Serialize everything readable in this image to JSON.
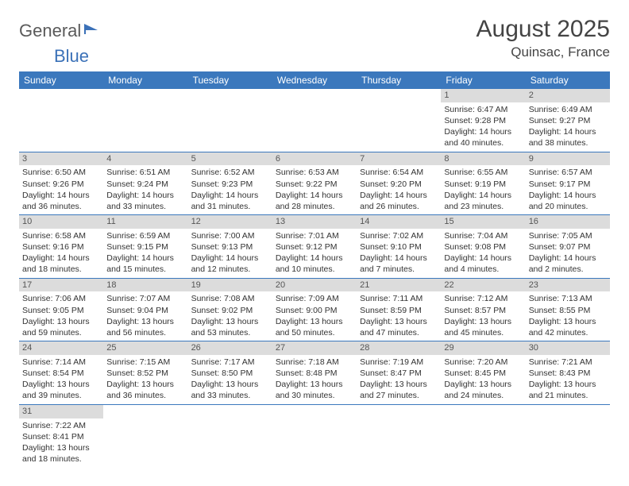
{
  "logo": {
    "part1": "General",
    "part2": "Blue"
  },
  "title": {
    "month": "August 2025",
    "location": "Quinsac, France"
  },
  "colors": {
    "header_bg": "#3b78bd",
    "header_text": "#ffffff",
    "daynum_bg": "#dcdcdc",
    "cell_border": "#3b78bd",
    "logo_gray": "#5a5a5a",
    "logo_blue": "#3b71b8"
  },
  "weekdays": [
    "Sunday",
    "Monday",
    "Tuesday",
    "Wednesday",
    "Thursday",
    "Friday",
    "Saturday"
  ],
  "weeks": [
    [
      null,
      null,
      null,
      null,
      null,
      {
        "n": "1",
        "sunrise": "Sunrise: 6:47 AM",
        "sunset": "Sunset: 9:28 PM",
        "daylight": "Daylight: 14 hours and 40 minutes."
      },
      {
        "n": "2",
        "sunrise": "Sunrise: 6:49 AM",
        "sunset": "Sunset: 9:27 PM",
        "daylight": "Daylight: 14 hours and 38 minutes."
      }
    ],
    [
      {
        "n": "3",
        "sunrise": "Sunrise: 6:50 AM",
        "sunset": "Sunset: 9:26 PM",
        "daylight": "Daylight: 14 hours and 36 minutes."
      },
      {
        "n": "4",
        "sunrise": "Sunrise: 6:51 AM",
        "sunset": "Sunset: 9:24 PM",
        "daylight": "Daylight: 14 hours and 33 minutes."
      },
      {
        "n": "5",
        "sunrise": "Sunrise: 6:52 AM",
        "sunset": "Sunset: 9:23 PM",
        "daylight": "Daylight: 14 hours and 31 minutes."
      },
      {
        "n": "6",
        "sunrise": "Sunrise: 6:53 AM",
        "sunset": "Sunset: 9:22 PM",
        "daylight": "Daylight: 14 hours and 28 minutes."
      },
      {
        "n": "7",
        "sunrise": "Sunrise: 6:54 AM",
        "sunset": "Sunset: 9:20 PM",
        "daylight": "Daylight: 14 hours and 26 minutes."
      },
      {
        "n": "8",
        "sunrise": "Sunrise: 6:55 AM",
        "sunset": "Sunset: 9:19 PM",
        "daylight": "Daylight: 14 hours and 23 minutes."
      },
      {
        "n": "9",
        "sunrise": "Sunrise: 6:57 AM",
        "sunset": "Sunset: 9:17 PM",
        "daylight": "Daylight: 14 hours and 20 minutes."
      }
    ],
    [
      {
        "n": "10",
        "sunrise": "Sunrise: 6:58 AM",
        "sunset": "Sunset: 9:16 PM",
        "daylight": "Daylight: 14 hours and 18 minutes."
      },
      {
        "n": "11",
        "sunrise": "Sunrise: 6:59 AM",
        "sunset": "Sunset: 9:15 PM",
        "daylight": "Daylight: 14 hours and 15 minutes."
      },
      {
        "n": "12",
        "sunrise": "Sunrise: 7:00 AM",
        "sunset": "Sunset: 9:13 PM",
        "daylight": "Daylight: 14 hours and 12 minutes."
      },
      {
        "n": "13",
        "sunrise": "Sunrise: 7:01 AM",
        "sunset": "Sunset: 9:12 PM",
        "daylight": "Daylight: 14 hours and 10 minutes."
      },
      {
        "n": "14",
        "sunrise": "Sunrise: 7:02 AM",
        "sunset": "Sunset: 9:10 PM",
        "daylight": "Daylight: 14 hours and 7 minutes."
      },
      {
        "n": "15",
        "sunrise": "Sunrise: 7:04 AM",
        "sunset": "Sunset: 9:08 PM",
        "daylight": "Daylight: 14 hours and 4 minutes."
      },
      {
        "n": "16",
        "sunrise": "Sunrise: 7:05 AM",
        "sunset": "Sunset: 9:07 PM",
        "daylight": "Daylight: 14 hours and 2 minutes."
      }
    ],
    [
      {
        "n": "17",
        "sunrise": "Sunrise: 7:06 AM",
        "sunset": "Sunset: 9:05 PM",
        "daylight": "Daylight: 13 hours and 59 minutes."
      },
      {
        "n": "18",
        "sunrise": "Sunrise: 7:07 AM",
        "sunset": "Sunset: 9:04 PM",
        "daylight": "Daylight: 13 hours and 56 minutes."
      },
      {
        "n": "19",
        "sunrise": "Sunrise: 7:08 AM",
        "sunset": "Sunset: 9:02 PM",
        "daylight": "Daylight: 13 hours and 53 minutes."
      },
      {
        "n": "20",
        "sunrise": "Sunrise: 7:09 AM",
        "sunset": "Sunset: 9:00 PM",
        "daylight": "Daylight: 13 hours and 50 minutes."
      },
      {
        "n": "21",
        "sunrise": "Sunrise: 7:11 AM",
        "sunset": "Sunset: 8:59 PM",
        "daylight": "Daylight: 13 hours and 47 minutes."
      },
      {
        "n": "22",
        "sunrise": "Sunrise: 7:12 AM",
        "sunset": "Sunset: 8:57 PM",
        "daylight": "Daylight: 13 hours and 45 minutes."
      },
      {
        "n": "23",
        "sunrise": "Sunrise: 7:13 AM",
        "sunset": "Sunset: 8:55 PM",
        "daylight": "Daylight: 13 hours and 42 minutes."
      }
    ],
    [
      {
        "n": "24",
        "sunrise": "Sunrise: 7:14 AM",
        "sunset": "Sunset: 8:54 PM",
        "daylight": "Daylight: 13 hours and 39 minutes."
      },
      {
        "n": "25",
        "sunrise": "Sunrise: 7:15 AM",
        "sunset": "Sunset: 8:52 PM",
        "daylight": "Daylight: 13 hours and 36 minutes."
      },
      {
        "n": "26",
        "sunrise": "Sunrise: 7:17 AM",
        "sunset": "Sunset: 8:50 PM",
        "daylight": "Daylight: 13 hours and 33 minutes."
      },
      {
        "n": "27",
        "sunrise": "Sunrise: 7:18 AM",
        "sunset": "Sunset: 8:48 PM",
        "daylight": "Daylight: 13 hours and 30 minutes."
      },
      {
        "n": "28",
        "sunrise": "Sunrise: 7:19 AM",
        "sunset": "Sunset: 8:47 PM",
        "daylight": "Daylight: 13 hours and 27 minutes."
      },
      {
        "n": "29",
        "sunrise": "Sunrise: 7:20 AM",
        "sunset": "Sunset: 8:45 PM",
        "daylight": "Daylight: 13 hours and 24 minutes."
      },
      {
        "n": "30",
        "sunrise": "Sunrise: 7:21 AM",
        "sunset": "Sunset: 8:43 PM",
        "daylight": "Daylight: 13 hours and 21 minutes."
      }
    ],
    [
      {
        "n": "31",
        "sunrise": "Sunrise: 7:22 AM",
        "sunset": "Sunset: 8:41 PM",
        "daylight": "Daylight: 13 hours and 18 minutes."
      },
      null,
      null,
      null,
      null,
      null,
      null
    ]
  ]
}
